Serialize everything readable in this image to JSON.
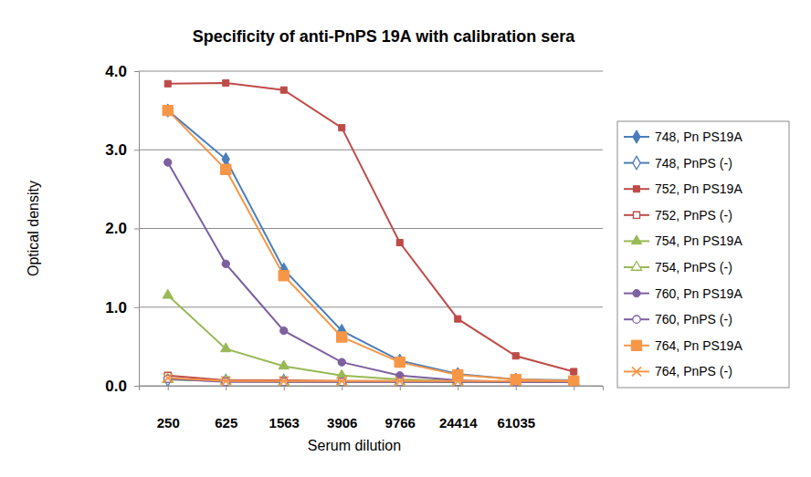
{
  "chart_data": {
    "type": "line",
    "title": "Specificity of anti-PnPS 19A with calibration sera",
    "x_label": "Serum dilution",
    "y_label": "Optical density",
    "categories": [
      "250",
      "625",
      "1563",
      "3906",
      "9766",
      "24414",
      "61035",
      null
    ],
    "ylim": [
      0,
      4
    ],
    "yticks": [
      {
        "value": 0,
        "label": "0.0"
      },
      {
        "value": 1,
        "label": "1.0"
      },
      {
        "value": 2,
        "label": "2.0"
      },
      {
        "value": 3,
        "label": "3.0"
      },
      {
        "value": 4,
        "label": "4.0"
      }
    ],
    "grid": true,
    "legend": "right",
    "series": [
      {
        "name": "748, Pn PS19A",
        "color": "#4a7ebb",
        "marker": "diamond",
        "values": [
          3.5,
          2.88,
          1.48,
          0.7,
          0.32,
          0.15,
          0.08,
          0.07
        ]
      },
      {
        "name": "748, PnPS (-)",
        "color": "#4a7ebb",
        "marker": "diamond-open",
        "values": [
          0.08,
          0.06,
          0.06,
          0.05,
          0.05,
          0.05,
          0.05,
          0.05
        ]
      },
      {
        "name": "752, Pn PS19A",
        "color": "#be4b48",
        "marker": "square",
        "values": [
          3.84,
          3.85,
          3.76,
          3.28,
          1.82,
          0.85,
          0.38,
          0.18
        ]
      },
      {
        "name": "752, PnPS (-)",
        "color": "#be4b48",
        "marker": "square-open",
        "values": [
          0.13,
          0.07,
          0.07,
          0.06,
          0.06,
          0.05,
          0.05,
          0.05
        ]
      },
      {
        "name": "754, Pn PS19A",
        "color": "#98b954",
        "marker": "triangle",
        "values": [
          1.15,
          0.47,
          0.25,
          0.13,
          0.08,
          0.06,
          0.05,
          0.05
        ]
      },
      {
        "name": "754, PnPS (-)",
        "color": "#98b954",
        "marker": "triangle-open",
        "values": [
          0.08,
          0.06,
          0.05,
          0.05,
          0.05,
          0.05,
          0.05,
          0.05
        ]
      },
      {
        "name": "760, Pn PS19A",
        "color": "#7d60a0",
        "marker": "circle",
        "values": [
          2.84,
          1.55,
          0.7,
          0.3,
          0.13,
          0.07,
          0.05,
          0.05
        ]
      },
      {
        "name": "760, PnPS (-)",
        "color": "#7d60a0",
        "marker": "circle-open",
        "values": [
          0.09,
          0.05,
          0.05,
          0.05,
          0.05,
          0.05,
          0.05,
          0.05
        ]
      },
      {
        "name": "764, Pn PS19A",
        "color": "#f79646",
        "marker": "square-large",
        "values": [
          3.5,
          2.75,
          1.4,
          0.62,
          0.3,
          0.14,
          0.08,
          0.06
        ]
      },
      {
        "name": "764, PnPS (-)",
        "color": "#f79646",
        "marker": "x",
        "values": [
          0.1,
          0.06,
          0.06,
          0.06,
          0.06,
          0.06,
          0.06,
          0.06
        ]
      }
    ]
  }
}
